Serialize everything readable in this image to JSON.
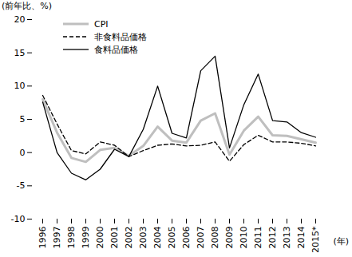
{
  "chart_data": {
    "type": "line",
    "y_label": "(前年比、%)",
    "x_label": "(年)",
    "categories": [
      "1996",
      "1997",
      "1998",
      "1999",
      "2000",
      "2001",
      "2002",
      "2003",
      "2004",
      "2005",
      "2006",
      "2007",
      "2008",
      "2009",
      "2010",
      "2011",
      "2012",
      "2013",
      "2014",
      "2015*"
    ],
    "series": [
      {
        "name": "CPI",
        "color": "#bfbfbf",
        "line_style": "solid",
        "values": [
          8.0,
          3.0,
          -0.8,
          -1.4,
          0.4,
          0.7,
          -0.5,
          1.0,
          3.9,
          1.8,
          1.5,
          4.8,
          5.9,
          -0.3,
          3.3,
          5.4,
          2.6,
          2.5,
          2.0,
          1.5
        ]
      },
      {
        "name": "非食料品価格",
        "color": "#000000",
        "line_style": "dashed",
        "values": [
          8.6,
          4.3,
          0.3,
          -0.2,
          1.6,
          1.1,
          -0.6,
          0.3,
          1.1,
          1.3,
          1.0,
          1.1,
          1.6,
          -1.3,
          1.2,
          2.6,
          1.6,
          1.6,
          1.4,
          1.0
        ]
      },
      {
        "name": "食料品価格",
        "color": "#000000",
        "line_style": "solid",
        "values": [
          7.6,
          0.0,
          -3.1,
          -4.1,
          -2.5,
          0.5,
          -0.6,
          3.5,
          10.0,
          2.9,
          2.2,
          12.3,
          14.5,
          0.7,
          7.2,
          11.8,
          4.8,
          4.6,
          3.0,
          2.3
        ]
      }
    ],
    "ylim": [
      -10,
      20
    ],
    "yticks": [
      -10,
      -5,
      0,
      5,
      10,
      15,
      20
    ],
    "grid": false,
    "legend": "top-left"
  }
}
